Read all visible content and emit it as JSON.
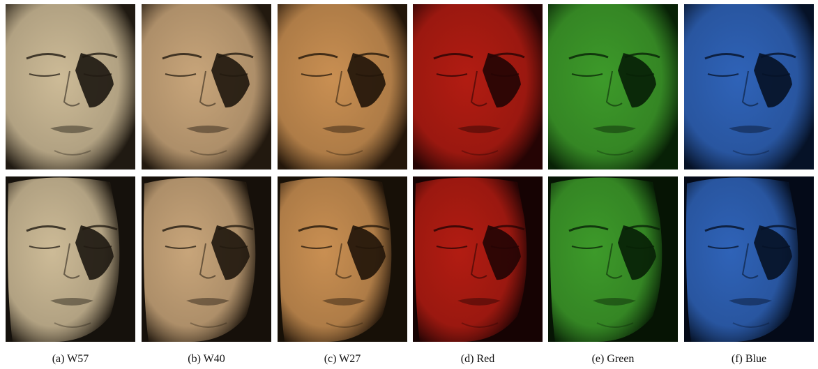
{
  "panels": [
    {
      "caption": "(a) W57",
      "tint": "#cdbb97",
      "shadow": "#201a12",
      "bg": "#15110c"
    },
    {
      "caption": "(b) W40",
      "tint": "#c8a57a",
      "shadow": "#22190f",
      "bg": "#16100a"
    },
    {
      "caption": "(c) W27",
      "tint": "#c98f52",
      "shadow": "#23160a",
      "bg": "#171007"
    },
    {
      "caption": "(d) Red",
      "tint": "#b21c12",
      "shadow": "#250404",
      "bg": "#160303"
    },
    {
      "caption": "(e) Green",
      "tint": "#3d9a2a",
      "shadow": "#082106",
      "bg": "#061404"
    },
    {
      "caption": "(f) Blue",
      "tint": "#2f63b8",
      "shadow": "#061227",
      "bg": "#040a18"
    }
  ]
}
